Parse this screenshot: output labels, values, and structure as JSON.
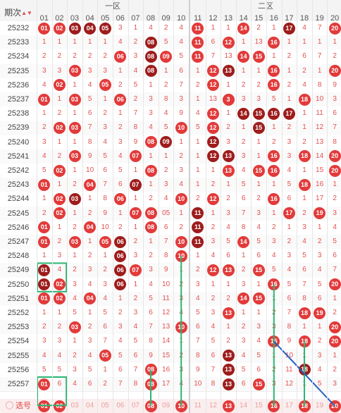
{
  "header": {
    "period_label": "期次",
    "sort_icon": "sort-icon",
    "zone1_label": "一区",
    "zone2_label": "二区",
    "columns": [
      "01",
      "02",
      "03",
      "04",
      "05",
      "06",
      "07",
      "08",
      "09",
      "10",
      "11",
      "12",
      "13",
      "14",
      "15",
      "16",
      "17",
      "18",
      "19",
      "20"
    ]
  },
  "rows": [
    {
      "period": "25232",
      "cells": [
        "01",
        "02",
        "03",
        "04",
        "05",
        "3",
        "1",
        "4",
        "2",
        "4",
        "11",
        "1",
        "1",
        "14",
        "2",
        "1",
        "17",
        "4",
        "7",
        "20"
      ],
      "hits": [
        1,
        2,
        3,
        4,
        5,
        11,
        14,
        17,
        20
      ],
      "dark": [
        3,
        4,
        5,
        17
      ]
    },
    {
      "period": "25233",
      "cells": [
        "1",
        "1",
        "1",
        "1",
        "1",
        "4",
        "2",
        "08",
        "5",
        "4",
        "11",
        "6",
        "12",
        "1",
        "13",
        "16",
        "1",
        "1",
        "1",
        "1"
      ],
      "hits": [
        8,
        11,
        13,
        16
      ],
      "dark": [
        8
      ]
    },
    {
      "period": "25234",
      "cells": [
        "2",
        "2",
        "2",
        "2",
        "2",
        "06",
        "3",
        "08",
        "09",
        "5",
        "11",
        "7",
        "13",
        "14",
        "15",
        "1",
        "2",
        "6",
        "7",
        "2"
      ],
      "hits": [
        6,
        8,
        9,
        11,
        14,
        15
      ],
      "dark": [
        8
      ]
    },
    {
      "period": "25235",
      "cells": [
        "3",
        "3",
        "03",
        "3",
        "3",
        "1",
        "4",
        "08",
        "1",
        "6",
        "1",
        "12",
        "13",
        "1",
        "1",
        "16",
        "1",
        "2",
        "1",
        "20"
      ],
      "hits": [
        3,
        8,
        12,
        13,
        16,
        20
      ],
      "dark": [
        8,
        13
      ]
    },
    {
      "period": "25236",
      "cells": [
        "4",
        "02",
        "1",
        "4",
        "05",
        "2",
        "5",
        "1",
        "2",
        "7",
        "2",
        "12",
        "1",
        "2",
        "2",
        "16",
        "2",
        "4",
        "8",
        "9"
      ],
      "hits": [
        2,
        5,
        12,
        16
      ],
      "dark": []
    },
    {
      "period": "25237",
      "cells": [
        "01",
        "1",
        "03",
        "5",
        "1",
        "06",
        "2",
        "3",
        "8",
        "3",
        "1",
        "13",
        "3",
        "3",
        "3",
        "5",
        "1",
        "18",
        "10",
        "3"
      ],
      "hits": [
        1,
        3,
        6,
        13,
        18
      ],
      "dark": []
    },
    {
      "period": "25238",
      "cells": [
        "1",
        "2",
        "1",
        "6",
        "2",
        "1",
        "7",
        "3",
        "4",
        "9",
        "4",
        "12",
        "1",
        "14",
        "15",
        "16",
        "17",
        "1",
        "11",
        "6"
      ],
      "hits": [
        12,
        14,
        15,
        16,
        17
      ],
      "dark": [
        14,
        15,
        16,
        17
      ]
    },
    {
      "period": "25239",
      "cells": [
        "2",
        "02",
        "03",
        "7",
        "3",
        "2",
        "8",
        "4",
        "5",
        "10",
        "5",
        "12",
        "2",
        "1",
        "15",
        "1",
        "2",
        "1",
        "12",
        "7"
      ],
      "hits": [
        2,
        3,
        10,
        12,
        15
      ],
      "dark": [
        15
      ]
    },
    {
      "period": "25240",
      "cells": [
        "3",
        "1",
        "1",
        "8",
        "4",
        "3",
        "9",
        "08",
        "09",
        "1",
        "1",
        "12",
        "3",
        "2",
        "1",
        "2",
        "3",
        "2",
        "13",
        "8"
      ],
      "hits": [
        8,
        9,
        12
      ],
      "dark": [
        9,
        12
      ]
    },
    {
      "period": "25241",
      "cells": [
        "4",
        "2",
        "03",
        "9",
        "5",
        "4",
        "07",
        "1",
        "1",
        "2",
        "1",
        "12",
        "13",
        "3",
        "1",
        "16",
        "3",
        "18",
        "14",
        "20"
      ],
      "hits": [
        3,
        7,
        12,
        13,
        16,
        18,
        20
      ],
      "dark": [
        12,
        13
      ]
    },
    {
      "period": "25242",
      "cells": [
        "5",
        "02",
        "1",
        "10",
        "6",
        "5",
        "1",
        "08",
        "2",
        "3",
        "1",
        "1",
        "13",
        "4",
        "15",
        "16",
        "4",
        "1",
        "15",
        "20"
      ],
      "hits": [
        2,
        8,
        13,
        15,
        16,
        20
      ],
      "dark": []
    },
    {
      "period": "25243",
      "cells": [
        "01",
        "1",
        "2",
        "04",
        "7",
        "6",
        "07",
        "1",
        "3",
        "4",
        "1",
        "2",
        "1",
        "5",
        "1",
        "1",
        "5",
        "18",
        "16",
        "1"
      ],
      "hits": [
        1,
        4,
        7,
        18
      ],
      "dark": [
        7
      ]
    },
    {
      "period": "25244",
      "cells": [
        "1",
        "02",
        "03",
        "1",
        "8",
        "06",
        "1",
        "2",
        "4",
        "10",
        "2",
        "12",
        "2",
        "6",
        "2",
        "16",
        "6",
        "1",
        "17",
        "2"
      ],
      "hits": [
        2,
        3,
        6,
        10,
        12,
        16
      ],
      "dark": [
        3
      ]
    },
    {
      "period": "25245",
      "cells": [
        "2",
        "02",
        "1",
        "2",
        "9",
        "1",
        "07",
        "08",
        "05",
        "1",
        "11",
        "1",
        "3",
        "7",
        "3",
        "1",
        "17",
        "2",
        "19",
        "3"
      ],
      "hits": [
        2,
        7,
        8,
        11,
        17,
        19
      ],
      "dark": [
        11
      ]
    },
    {
      "period": "25246",
      "cells": [
        "01",
        "1",
        "2",
        "04",
        "10",
        "2",
        "1",
        "08",
        "6",
        "2",
        "11",
        "2",
        "4",
        "8",
        "4",
        "2",
        "1",
        "3",
        "1",
        "4"
      ],
      "hits": [
        1,
        4,
        8,
        11
      ],
      "dark": [
        11
      ]
    },
    {
      "period": "25247",
      "cells": [
        "01",
        "2",
        "03",
        "1",
        "05",
        "06",
        "2",
        "1",
        "7",
        "10",
        "11",
        "3",
        "5",
        "14",
        "5",
        "3",
        "2",
        "4",
        "2",
        "5"
      ],
      "hits": [
        1,
        3,
        5,
        6,
        10,
        11,
        14
      ],
      "dark": [
        6,
        11
      ]
    },
    {
      "period": "25248",
      "cells": [
        "1",
        "3",
        "1",
        "2",
        "1",
        "06",
        "3",
        "2",
        "8",
        "10",
        "1",
        "4",
        "6",
        "1",
        "6",
        "4",
        "3",
        "5",
        "3",
        "6"
      ],
      "hits": [
        6,
        10
      ],
      "dark": [
        6
      ]
    },
    {
      "period": "25249",
      "cells": [
        "01",
        "4",
        "2",
        "3",
        "2",
        "06",
        "07",
        "3",
        "9",
        "1",
        "2",
        "12",
        "13",
        "2",
        "15",
        "5",
        "4",
        "6",
        "4",
        "7"
      ],
      "hits": [
        1,
        6,
        7,
        12,
        13,
        15
      ],
      "dark": [
        1,
        6
      ]
    },
    {
      "period": "25250",
      "cells": [
        "01",
        "02",
        "3",
        "4",
        "3",
        "06",
        "1",
        "4",
        "10",
        "2",
        "3",
        "1",
        "1",
        "3",
        "1",
        "16",
        "5",
        "7",
        "5",
        "20"
      ],
      "hits": [
        1,
        2,
        6,
        16,
        20
      ],
      "dark": [
        1,
        6
      ]
    },
    {
      "period": "25251",
      "cells": [
        "01",
        "02",
        "4",
        "04",
        "4",
        "1",
        "2",
        "5",
        "11",
        "3",
        "4",
        "2",
        "2",
        "14",
        "15",
        "1",
        "6",
        "8",
        "6",
        "1"
      ],
      "hits": [
        1,
        2,
        4,
        14,
        15
      ],
      "dark": []
    },
    {
      "period": "25252",
      "cells": [
        "1",
        "1",
        "5",
        "1",
        "5",
        "2",
        "3",
        "6",
        "12",
        "4",
        "5",
        "3",
        "13",
        "1",
        "1",
        "2",
        "7",
        "18",
        "19",
        "2"
      ],
      "hits": [
        13,
        18,
        19
      ],
      "dark": []
    },
    {
      "period": "25253",
      "cells": [
        "2",
        "2",
        "03",
        "2",
        "6",
        "3",
        "4",
        "7",
        "13",
        "10",
        "6",
        "4",
        "1",
        "2",
        "3",
        "3",
        "8",
        "1",
        "1",
        "20"
      ],
      "hits": [
        3,
        10,
        20
      ],
      "dark": []
    },
    {
      "period": "25254",
      "cells": [
        "3",
        "3",
        "1",
        "3",
        "7",
        "4",
        "5",
        "8",
        "14",
        "1",
        "7",
        "5",
        "2",
        "3",
        "4",
        "16",
        "9",
        "18",
        "2",
        "20"
      ],
      "hits": [
        16,
        18,
        20
      ],
      "dark": []
    },
    {
      "period": "25255",
      "cells": [
        "4",
        "4",
        "2",
        "4",
        "05",
        "5",
        "6",
        "9",
        "15",
        "2",
        "8",
        "6",
        "13",
        "4",
        "5",
        "1",
        "10",
        "1",
        "3",
        "1"
      ],
      "hits": [
        5,
        13
      ],
      "dark": [
        13
      ]
    },
    {
      "period": "25256",
      "cells": [
        "5",
        "5",
        "3",
        "5",
        "1",
        "6",
        "7",
        "08",
        "16",
        "3",
        "9",
        "7",
        "13",
        "5",
        "6",
        "2",
        "11",
        "18",
        "4",
        "2"
      ],
      "hits": [
        8,
        13,
        18
      ],
      "dark": [
        13,
        18
      ]
    },
    {
      "period": "25257",
      "cells": [
        "01",
        "6",
        "4",
        "6",
        "2",
        "7",
        "8",
        "08",
        "17",
        "4",
        "10",
        "8",
        "13",
        "6",
        "15",
        "3",
        "12",
        "1",
        "5",
        "3"
      ],
      "hits": [
        1,
        8,
        13,
        15
      ],
      "dark": [
        13
      ]
    }
  ],
  "footer": {
    "label": "选号",
    "cells": [
      "01",
      "02",
      "03",
      "04",
      "05",
      "06",
      "07",
      "08",
      "09",
      "10",
      "11",
      "12",
      "13",
      "14",
      "15",
      "16",
      "17",
      "18",
      "19",
      "20"
    ],
    "selected": [
      1,
      2,
      8,
      10,
      13,
      16,
      18,
      20
    ]
  },
  "colors": {
    "hit": "#e23a3a",
    "hit_dark": "#9e1c1c",
    "miss_text": "#e45050",
    "trend_line": "#1e5fbf",
    "box_line": "#2bb673"
  }
}
